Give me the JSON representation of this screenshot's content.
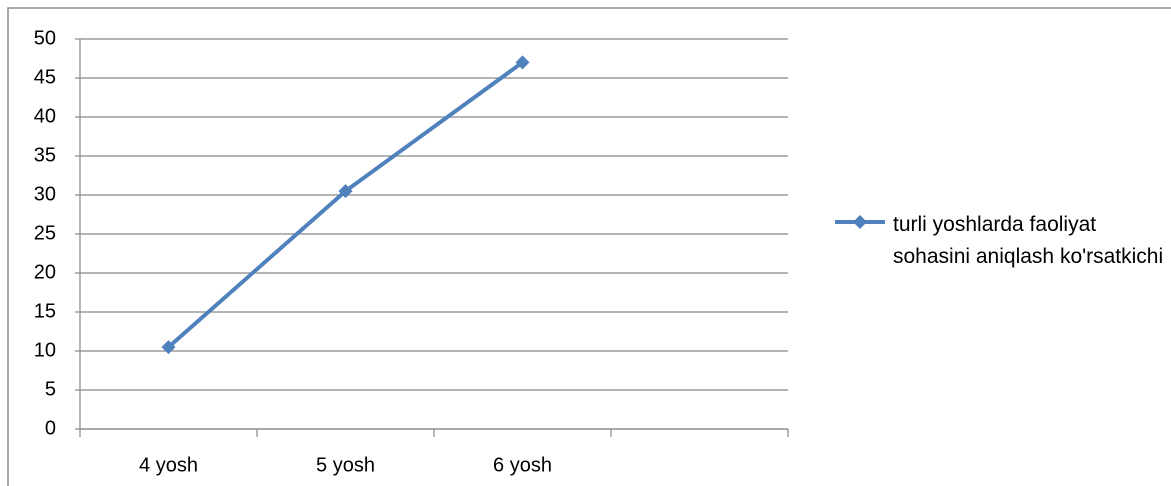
{
  "chart_data": {
    "type": "line",
    "categories": [
      "4 yosh",
      "5 yosh",
      "6 yosh",
      null
    ],
    "series": [
      {
        "name": "turli yoshlarda faoliyat sohasini aniqlash ko'rsatkichi",
        "color": "#4f81bd",
        "values": [
          10.5,
          30.5,
          47,
          null
        ]
      }
    ],
    "ylim": [
      0,
      50
    ],
    "yticks": [
      0,
      5,
      10,
      15,
      20,
      25,
      30,
      35,
      40,
      45,
      50
    ],
    "grid": true,
    "legend": "right"
  }
}
